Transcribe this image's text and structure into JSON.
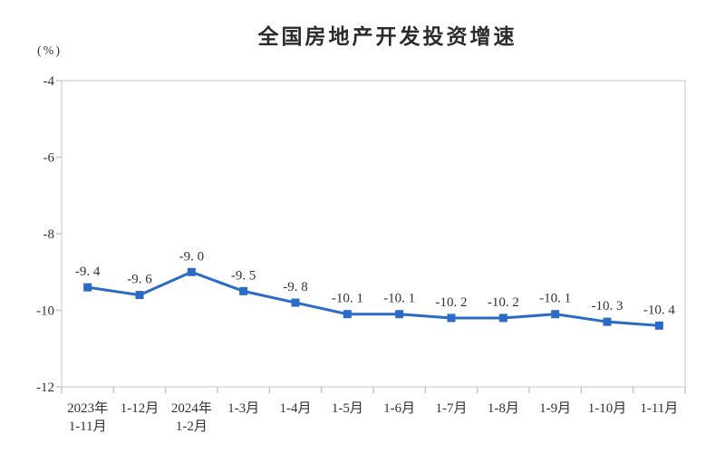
{
  "title": "全国房地产开发投资增速",
  "y_axis_unit": "(%)",
  "chart_data": {
    "type": "line",
    "title": "全国房地产开发投资增速",
    "ylabel": "(%)",
    "categories": [
      [
        "2023年",
        "1-11月"
      ],
      [
        "1-12月"
      ],
      [
        "2024年",
        "1-2月"
      ],
      [
        "1-3月"
      ],
      [
        "1-4月"
      ],
      [
        "1-5月"
      ],
      [
        "1-6月"
      ],
      [
        "1-7月"
      ],
      [
        "1-8月"
      ],
      [
        "1-9月"
      ],
      [
        "1-10月"
      ],
      [
        "1-11月"
      ]
    ],
    "values": [
      -9.4,
      -9.6,
      -9.0,
      -9.5,
      -9.8,
      -10.1,
      -10.1,
      -10.2,
      -10.2,
      -10.1,
      -10.3,
      -10.4
    ],
    "point_labels": [
      "-9. 4",
      "-9. 6",
      "-9. 0",
      "-9. 5",
      "-9. 8",
      "-10. 1",
      "-10. 1",
      "-10. 2",
      "-10. 2",
      "-10. 1",
      "-10. 3",
      "-10. 4"
    ],
    "ylim": [
      -12,
      -4
    ],
    "yticks": [
      -4,
      -6,
      -8,
      -10,
      -12
    ],
    "grid": false,
    "legend": "none",
    "line_color": "#2a6bc8",
    "marker": "square",
    "axis_color": "#d9d9d9",
    "tick_color": "#c9c9c9",
    "text_color": "#333333"
  }
}
